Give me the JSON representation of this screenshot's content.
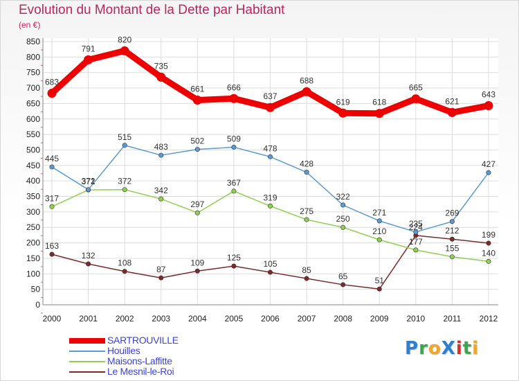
{
  "title": "Evolution du Montant de la Dette par Habitant",
  "subtitle": "(en €)",
  "logo": {
    "text": "Proxiti",
    "letters": [
      {
        "ch": "P",
        "color": "#2c7fd1"
      },
      {
        "ch": "r",
        "color": "#3aa84a"
      },
      {
        "ch": "o",
        "color": "#f0a52b"
      },
      {
        "ch": "X",
        "color": "#2c7fd1"
      },
      {
        "ch": "i",
        "color": "#d9302a"
      },
      {
        "ch": "t",
        "color": "#3aa84a"
      },
      {
        "ch": "i",
        "color": "#f0a52b"
      }
    ]
  },
  "chart_data": {
    "type": "line",
    "x": [
      "2000",
      "2001",
      "2002",
      "2003",
      "2004",
      "2005",
      "2006",
      "2007",
      "2008",
      "2009",
      "2010",
      "2011",
      "2012"
    ],
    "ylim": [
      0,
      850
    ],
    "yticks": [
      0,
      50,
      100,
      150,
      200,
      250,
      300,
      350,
      400,
      450,
      500,
      550,
      600,
      650,
      700,
      750,
      800,
      850
    ],
    "grid": true,
    "legend_position": "bottom-left",
    "series": [
      {
        "name": "SARTROUVILLE",
        "color": "#ee0000",
        "bold": true,
        "values": [
          683,
          791,
          820,
          735,
          661,
          666,
          637,
          688,
          619,
          618,
          665,
          621,
          643
        ]
      },
      {
        "name": "Houilles",
        "color": "#5b9bd5",
        "values": [
          445,
          372,
          515,
          483,
          502,
          509,
          478,
          428,
          322,
          271,
          235,
          269,
          427
        ]
      },
      {
        "name": "Maisons-Laffitte",
        "color": "#8fd14f",
        "values": [
          317,
          371,
          372,
          342,
          297,
          367,
          319,
          275,
          250,
          210,
          177,
          155,
          140
        ]
      },
      {
        "name": "Le Mesnil-le-Roi",
        "color": "#7a2a2a",
        "values": [
          163,
          132,
          108,
          87,
          109,
          125,
          105,
          85,
          65,
          51,
          224,
          212,
          199
        ]
      }
    ]
  }
}
